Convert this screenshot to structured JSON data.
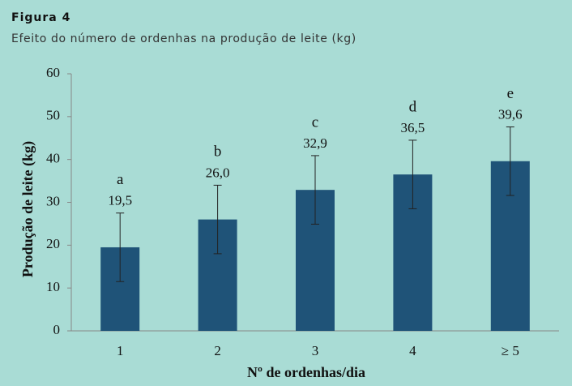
{
  "figure_label": "Figura 4",
  "chart_data": {
    "type": "bar",
    "title": "Efeito do número de ordenhas na produção de leite (kg)",
    "categories": [
      "1",
      "2",
      "3",
      "4",
      "≥ 5"
    ],
    "values": [
      19.5,
      26.0,
      32.9,
      36.5,
      39.6
    ],
    "value_labels": [
      "19,5",
      "26,0",
      "32,9",
      "36,5",
      "39,6"
    ],
    "errors": [
      8,
      8,
      8,
      8,
      8
    ],
    "annotations": [
      "a",
      "b",
      "c",
      "d",
      "e"
    ],
    "color": "#1f5378",
    "xlabel": "Nº de ordenhas/dia",
    "ylabel": "Produção de leite (kg)",
    "ylim": [
      0,
      60
    ],
    "yticks": [
      0,
      10,
      20,
      30,
      40,
      50,
      60
    ],
    "grid": false
  }
}
